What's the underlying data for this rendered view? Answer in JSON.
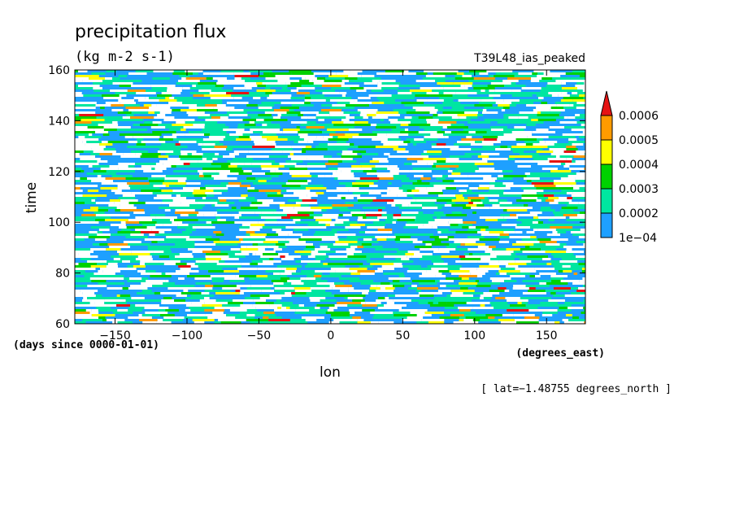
{
  "chart_data": {
    "type": "heatmap",
    "title": "precipitation flux",
    "units": "(kg m-2 s-1)",
    "run_label": "T39L48_ias_peaked",
    "xlabel": "lon",
    "ylabel": "time",
    "x_units": "(degrees_east)",
    "y_units": "(days since 0000-01-01)",
    "x_ticks": [
      -150,
      -100,
      -50,
      0,
      50,
      100,
      150
    ],
    "x_tick_labels": [
      "−150",
      "−100",
      "−50",
      "0",
      "50",
      "100",
      "150"
    ],
    "y_ticks": [
      60,
      80,
      100,
      120,
      140,
      160
    ],
    "y_tick_labels": [
      "60",
      "80",
      "100",
      "120",
      "140",
      "160"
    ],
    "xlim": [
      -178,
      177
    ],
    "ylim": [
      60,
      160
    ],
    "footnote": "[ lat=−1.48755 degrees_north ]",
    "colorbar": {
      "levels": [
        0.0001,
        0.0002,
        0.0003,
        0.0004,
        0.0005,
        0.0006
      ],
      "level_labels": [
        "1e−04",
        "0.0002",
        "0.0003",
        "0.0004",
        "0.0005",
        "0.0006"
      ],
      "colors": [
        "#ffffff",
        "#1ea0ff",
        "#00e6a0",
        "#00d200",
        "#ffff00",
        "#ff9b00",
        "#e61414"
      ],
      "extend": "max"
    },
    "grid": false
  }
}
